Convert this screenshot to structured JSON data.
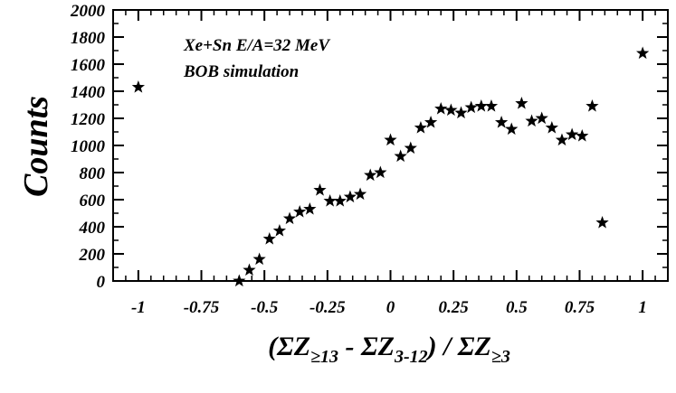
{
  "chart_data": {
    "type": "scatter",
    "marker": "star",
    "marker_color": "#000000",
    "xlim": [
      -1.1,
      1.1
    ],
    "ylim": [
      0,
      2000
    ],
    "x_ticks": [
      -1,
      -0.75,
      -0.5,
      -0.25,
      0,
      0.25,
      0.5,
      0.75,
      1
    ],
    "x_tick_labels": [
      "-1",
      "-0.75",
      "-0.5",
      "-0.25",
      "0",
      "0.25",
      "0.5",
      "0.75",
      "1"
    ],
    "y_ticks": [
      0,
      200,
      400,
      600,
      800,
      1000,
      1200,
      1400,
      1600,
      1800,
      2000
    ],
    "y_tick_labels": [
      "0",
      "200",
      "400",
      "600",
      "800",
      "1000",
      "1200",
      "1400",
      "1600",
      "1800",
      "2000"
    ],
    "ylabel": "Counts",
    "xlabel": {
      "parts": [
        "(ΣZ",
        "≥13",
        " - ΣZ",
        "3-12",
        ") / ΣZ",
        "≥3"
      ]
    },
    "annotations": [
      "Xe+Sn E/A=32 MeV",
      "BOB simulation"
    ],
    "grid": false,
    "points": [
      {
        "x": -1.0,
        "y": 1430
      },
      {
        "x": -0.6,
        "y": 0
      },
      {
        "x": -0.56,
        "y": 80
      },
      {
        "x": -0.52,
        "y": 160
      },
      {
        "x": -0.48,
        "y": 310
      },
      {
        "x": -0.44,
        "y": 370
      },
      {
        "x": -0.4,
        "y": 460
      },
      {
        "x": -0.36,
        "y": 510
      },
      {
        "x": -0.32,
        "y": 530
      },
      {
        "x": -0.28,
        "y": 670
      },
      {
        "x": -0.24,
        "y": 590
      },
      {
        "x": -0.2,
        "y": 590
      },
      {
        "x": -0.16,
        "y": 620
      },
      {
        "x": -0.12,
        "y": 640
      },
      {
        "x": -0.08,
        "y": 780
      },
      {
        "x": -0.04,
        "y": 800
      },
      {
        "x": 0.0,
        "y": 1040
      },
      {
        "x": 0.04,
        "y": 920
      },
      {
        "x": 0.08,
        "y": 980
      },
      {
        "x": 0.12,
        "y": 1130
      },
      {
        "x": 0.16,
        "y": 1170
      },
      {
        "x": 0.2,
        "y": 1270
      },
      {
        "x": 0.24,
        "y": 1260
      },
      {
        "x": 0.28,
        "y": 1240
      },
      {
        "x": 0.32,
        "y": 1280
      },
      {
        "x": 0.36,
        "y": 1290
      },
      {
        "x": 0.4,
        "y": 1290
      },
      {
        "x": 0.44,
        "y": 1170
      },
      {
        "x": 0.48,
        "y": 1120
      },
      {
        "x": 0.52,
        "y": 1310
      },
      {
        "x": 0.56,
        "y": 1180
      },
      {
        "x": 0.6,
        "y": 1200
      },
      {
        "x": 0.64,
        "y": 1130
      },
      {
        "x": 0.68,
        "y": 1040
      },
      {
        "x": 0.72,
        "y": 1080
      },
      {
        "x": 0.76,
        "y": 1070
      },
      {
        "x": 0.8,
        "y": 1290
      },
      {
        "x": 0.84,
        "y": 430
      },
      {
        "x": 1.0,
        "y": 1680
      }
    ]
  }
}
